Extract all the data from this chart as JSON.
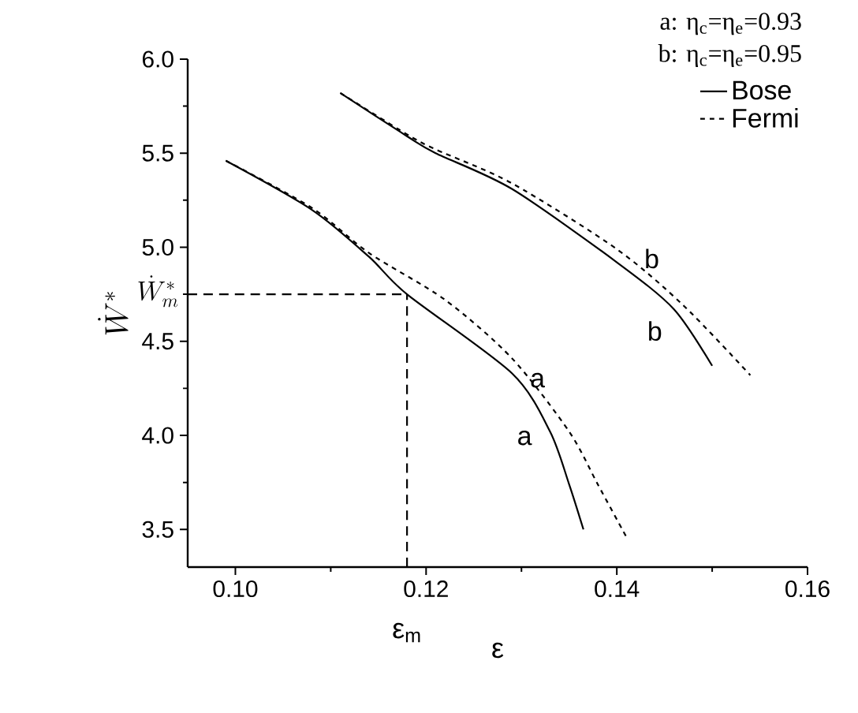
{
  "chart_data": {
    "type": "line",
    "xlabel": "ε",
    "ylabel": "\\dot{W}^{*}",
    "xlim": [
      0.095,
      0.16
    ],
    "ylim": [
      3.3,
      6.0
    ],
    "xticks": [
      {
        "value": 0.1,
        "label": "0.10"
      },
      0.12,
      0.14,
      {
        "value": 0.16,
        "label": "0.16"
      }
    ],
    "yticks": [
      3.5,
      {
        "value": 4.0,
        "label": "4.0"
      },
      4.5,
      {
        "value": 5.0,
        "label": "5.0"
      },
      5.5,
      {
        "value": 6.0,
        "label": "6.0"
      }
    ],
    "legend": "top right",
    "marker": "none",
    "series": [
      {
        "name": "Bose",
        "color": "#000000",
        "line_style": "solid",
        "x": [
          0.099,
          0.108,
          0.114,
          0.118,
          0.129,
          0.133,
          0.135,
          0.1365
        ],
        "values": [
          5.46,
          5.2,
          4.95,
          4.75,
          4.33,
          4.02,
          3.74,
          3.5
        ]
      },
      {
        "name": "Fermi",
        "color": "#000000",
        "line_style": "dashed",
        "x": [
          0.099,
          0.108,
          0.114,
          0.122,
          0.129,
          0.135,
          0.138,
          0.141
        ],
        "values": [
          5.46,
          5.21,
          4.97,
          4.72,
          4.41,
          4.02,
          3.74,
          3.46
        ]
      },
      {
        "color": "#000000",
        "line_style": "solid",
        "x": [
          0.111,
          0.118,
          0.121,
          0.129,
          0.14,
          0.146,
          0.15
        ],
        "values": [
          5.82,
          5.59,
          5.5,
          5.31,
          4.92,
          4.67,
          4.37
        ]
      },
      {
        "color": "#000000",
        "line_style": "dashed",
        "x": [
          0.111,
          0.118,
          0.121,
          0.129,
          0.14,
          0.147,
          0.154
        ],
        "values": [
          5.82,
          5.6,
          5.52,
          5.34,
          4.99,
          4.69,
          4.32
        ]
      }
    ],
    "ref_lines": [
      {
        "axis": "x",
        "value": 0.118,
        "label": "ε$_{m}$",
        "line_style": "dashed"
      },
      {
        "axis": "y",
        "value": 4.75,
        "label": "\\dot{W}^{*}_{m}",
        "line_style": "dashed"
      }
    ],
    "annotations": [
      "a: η$_{c}$=η$_{e}$=0.93",
      "b: η$_{c}$=η$_{e}$=0.95",
      "a",
      "a",
      "b",
      "b"
    ]
  }
}
